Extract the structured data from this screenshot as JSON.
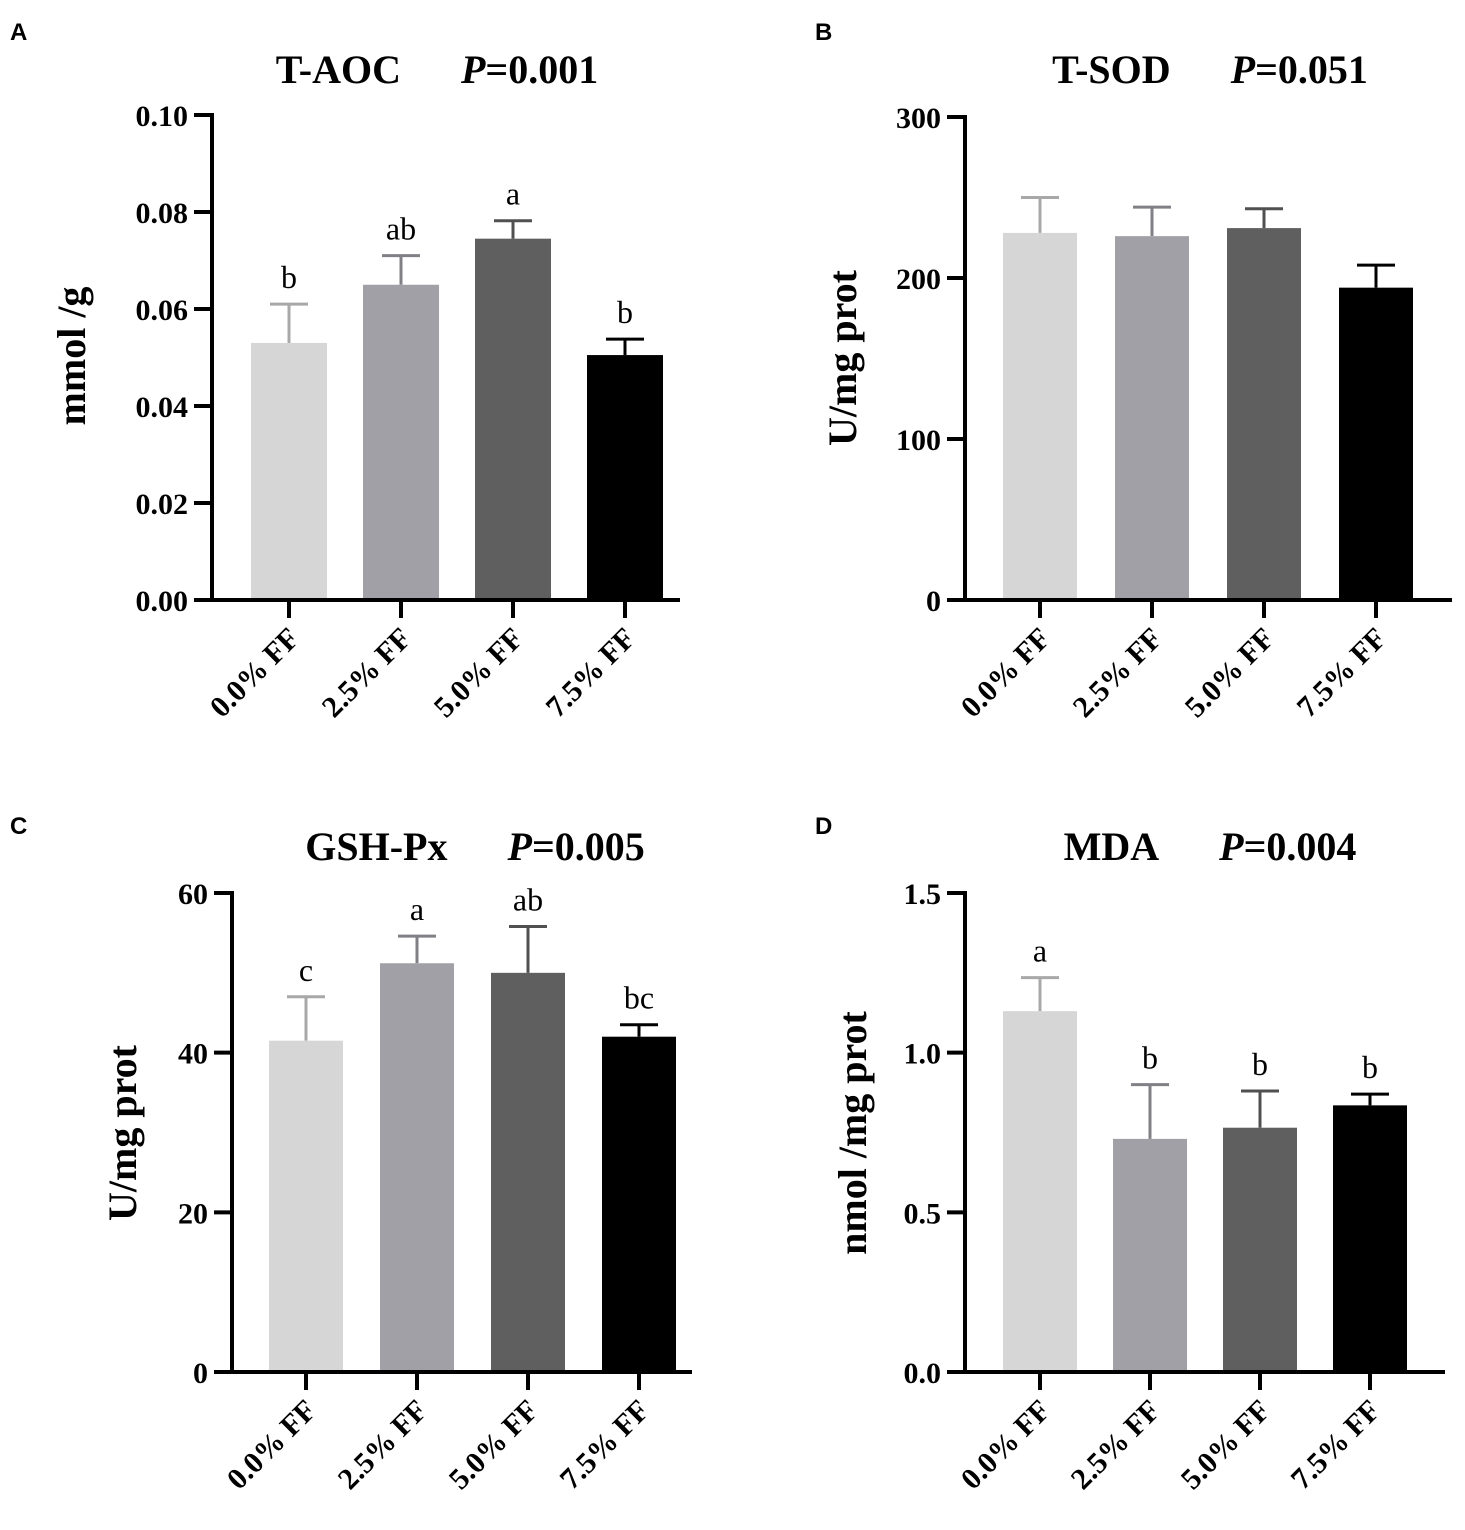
{
  "colors": {
    "bars": [
      "#d6d6d6",
      "#a0a0a6",
      "#5f5f5f",
      "#000000"
    ],
    "errorbars": [
      "#a8a8a8",
      "#808086",
      "#505050",
      "#000000"
    ]
  },
  "chart_data": [
    {
      "panel": "A",
      "type": "bar",
      "title": "T-AOC",
      "p_label": "P",
      "p_value": "=0.001",
      "ylabel": "mmol /g",
      "xlabel": "",
      "categories": [
        "0.0% FF",
        "2.5% FF",
        "5.0% FF",
        "7.5% FF"
      ],
      "values": [
        0.053,
        0.065,
        0.0745,
        0.0505
      ],
      "errors": [
        0.008,
        0.006,
        0.0037,
        0.0033
      ],
      "significance": [
        "b",
        "ab",
        "a",
        "b"
      ],
      "ylim": [
        0,
        0.1
      ],
      "yticks": [
        0,
        0.02,
        0.04,
        0.06,
        0.08,
        0.1
      ],
      "ytick_labels": [
        "0.00",
        "0.02",
        "0.04",
        "0.06",
        "0.08",
        "0.10"
      ]
    },
    {
      "panel": "B",
      "type": "bar",
      "title": "T-SOD",
      "p_label": "P",
      "p_value": "=0.051",
      "ylabel": "U/mg  prot",
      "xlabel": "",
      "categories": [
        "0.0% FF",
        "2.5% FF",
        "5.0% FF",
        "7.5% FF"
      ],
      "values": [
        228,
        226,
        231,
        194
      ],
      "errors": [
        22,
        18,
        12,
        14
      ],
      "significance": [
        "",
        "",
        "",
        ""
      ],
      "ylim": [
        0,
        300
      ],
      "yticks": [
        0,
        100,
        200,
        300
      ],
      "ytick_labels": [
        "0",
        "100",
        "200",
        "300"
      ]
    },
    {
      "panel": "C",
      "type": "bar",
      "title": "GSH-Px",
      "p_label": "P",
      "p_value": "=0.005",
      "ylabel": "U/mg  prot",
      "xlabel": "",
      "categories": [
        "0.0% FF",
        "2.5% FF",
        "5.0% FF",
        "7.5% FF"
      ],
      "values": [
        41.5,
        51.2,
        50,
        42
      ],
      "errors": [
        5.5,
        3.4,
        5.8,
        1.5
      ],
      "significance": [
        "c",
        "a",
        "ab",
        "bc"
      ],
      "ylim": [
        0,
        60
      ],
      "yticks": [
        0,
        20,
        40,
        60
      ],
      "ytick_labels": [
        "0",
        "20",
        "40",
        "60"
      ]
    },
    {
      "panel": "D",
      "type": "bar",
      "title": "MDA",
      "p_label": "P",
      "p_value": "=0.004",
      "ylabel": "nmol /mg  prot",
      "xlabel": "",
      "categories": [
        "0.0% FF",
        "2.5% FF",
        "5.0% FF",
        "7.5% FF"
      ],
      "values": [
        1.13,
        0.73,
        0.765,
        0.835
      ],
      "errors": [
        0.105,
        0.17,
        0.115,
        0.035
      ],
      "significance": [
        "a",
        "b",
        "b",
        "b"
      ],
      "ylim": [
        0,
        1.5
      ],
      "yticks": [
        0,
        0.5,
        1.0,
        1.5
      ],
      "ytick_labels": [
        "0.0",
        "0.5",
        "1.0",
        "1.5"
      ]
    }
  ]
}
